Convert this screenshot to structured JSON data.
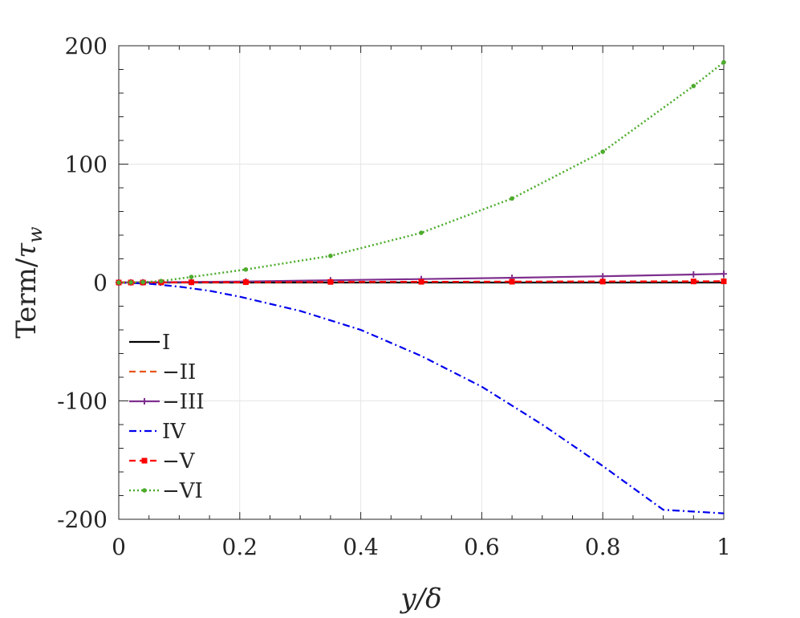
{
  "chart_data": {
    "type": "line",
    "xlabel": "y/δ",
    "ylabel": "Term/τ_w",
    "xlim": [
      0,
      1
    ],
    "ylim": [
      -200,
      200
    ],
    "xticks": [
      0,
      0.2,
      0.4,
      0.6,
      0.8,
      1
    ],
    "xtick_labels": [
      "0",
      "0.2",
      "0.4",
      "0.6",
      "0.8",
      "1"
    ],
    "yticks": [
      -200,
      -100,
      0,
      100,
      200
    ],
    "ytick_labels": [
      "-200",
      "-100",
      "0",
      "100",
      "200"
    ],
    "grid": true,
    "legend_position": "bottom-left",
    "series": [
      {
        "name": "I",
        "color": "#000000",
        "style": "solid",
        "marker": "none",
        "x": [
          0,
          0.05,
          0.1,
          0.2,
          0.3,
          0.4,
          0.5,
          0.6,
          0.7,
          0.8,
          0.9,
          1.0
        ],
        "y": [
          0,
          0,
          0,
          0,
          0,
          0,
          0,
          0,
          0,
          0,
          0,
          0
        ]
      },
      {
        "name": "−II",
        "color": "#e8541a",
        "style": "dashed",
        "marker": "none",
        "x": [
          0,
          0.05,
          0.1,
          0.2,
          0.3,
          0.4,
          0.5,
          0.6,
          0.7,
          0.8,
          0.9,
          1.0
        ],
        "y": [
          0,
          0.1,
          0.2,
          0.3,
          0.4,
          0.5,
          0.6,
          0.7,
          0.8,
          0.9,
          1.0,
          1.1
        ]
      },
      {
        "name": "−III",
        "color": "#7e2f8e",
        "style": "solid",
        "marker": "plus",
        "x": [
          0,
          0.02,
          0.04,
          0.07,
          0.12,
          0.21,
          0.35,
          0.5,
          0.65,
          0.8,
          0.95,
          1.0
        ],
        "y": [
          0,
          0.1,
          0.2,
          0.3,
          0.5,
          0.9,
          1.9,
          2.9,
          4.0,
          5.3,
          6.8,
          7.3
        ]
      },
      {
        "name": "IV",
        "color": "#0000ee",
        "style": "dashdot",
        "marker": "none",
        "x": [
          0,
          0.05,
          0.1,
          0.15,
          0.2,
          0.3,
          0.4,
          0.5,
          0.6,
          0.7,
          0.8,
          0.9,
          1.0
        ],
        "y": [
          0,
          -1,
          -3.5,
          -7,
          -12,
          -24,
          -40,
          -62,
          -88,
          -120,
          -155,
          -192,
          -195
        ]
      },
      {
        "name": "−V",
        "color": "#ff0000",
        "style": "dashed",
        "marker": "square",
        "x": [
          0,
          0.02,
          0.04,
          0.07,
          0.12,
          0.21,
          0.35,
          0.5,
          0.65,
          0.8,
          0.95,
          1.0
        ],
        "y": [
          0,
          0,
          0,
          0.1,
          0.2,
          0.3,
          0.5,
          0.6,
          0.7,
          0.8,
          0.9,
          1.0
        ]
      },
      {
        "name": "−VI",
        "color": "#4dab2c",
        "style": "dotted",
        "marker": "dot",
        "x": [
          0,
          0.02,
          0.04,
          0.07,
          0.12,
          0.21,
          0.35,
          0.5,
          0.65,
          0.8,
          0.95,
          1.0
        ],
        "y": [
          0,
          0.1,
          0.3,
          1.2,
          4.7,
          11,
          22.5,
          42,
          71,
          110.5,
          166,
          186
        ]
      }
    ]
  }
}
